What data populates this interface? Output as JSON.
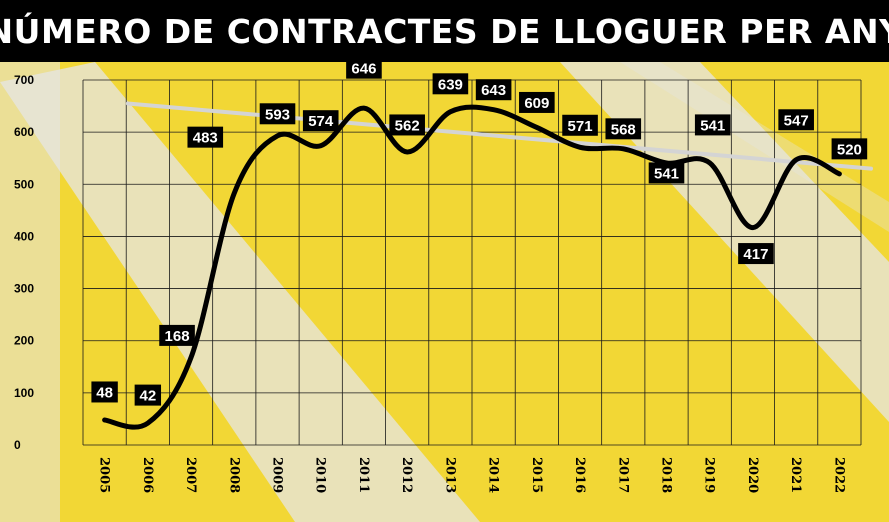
{
  "title": "NÚMERO DE CONTRACTES DE LLOGUER PER ANY",
  "colors": {
    "background": "#f2d735",
    "band": "#e6e6e6",
    "title_bar": "#000000",
    "line": "#000000",
    "trend": "#d4d4d4",
    "label_box": "#000000"
  },
  "chart_data": {
    "type": "line",
    "title": "NÚMERO DE CONTRACTES DE LLOGUER PER ANY",
    "xlabel": "",
    "ylabel": "",
    "categories": [
      "2005",
      "2006",
      "2007",
      "2008",
      "2009",
      "2010",
      "2011",
      "2012",
      "2013",
      "2014",
      "2015",
      "2016",
      "2017",
      "2018",
      "2019",
      "2020",
      "2021",
      "2022"
    ],
    "yticks": [
      "0",
      "100",
      "200",
      "300",
      "400",
      "500",
      "600",
      "700"
    ],
    "ylim": [
      0,
      700
    ],
    "grid": true,
    "legend": "none",
    "series": [
      {
        "values": [
          48,
          42,
          168,
          483,
          593,
          574,
          646,
          562,
          639,
          643,
          609,
          571,
          568,
          541,
          541,
          417,
          547,
          520
        ]
      }
    ],
    "data_labels": [
      "48",
      "42",
      "168",
      "483",
      "593",
      "574",
      "646",
      "562",
      "639",
      "643",
      "609",
      "571",
      "568",
      "541",
      "541",
      "417",
      "547",
      "520"
    ],
    "trendline": {
      "start": 655,
      "end": 530
    }
  }
}
